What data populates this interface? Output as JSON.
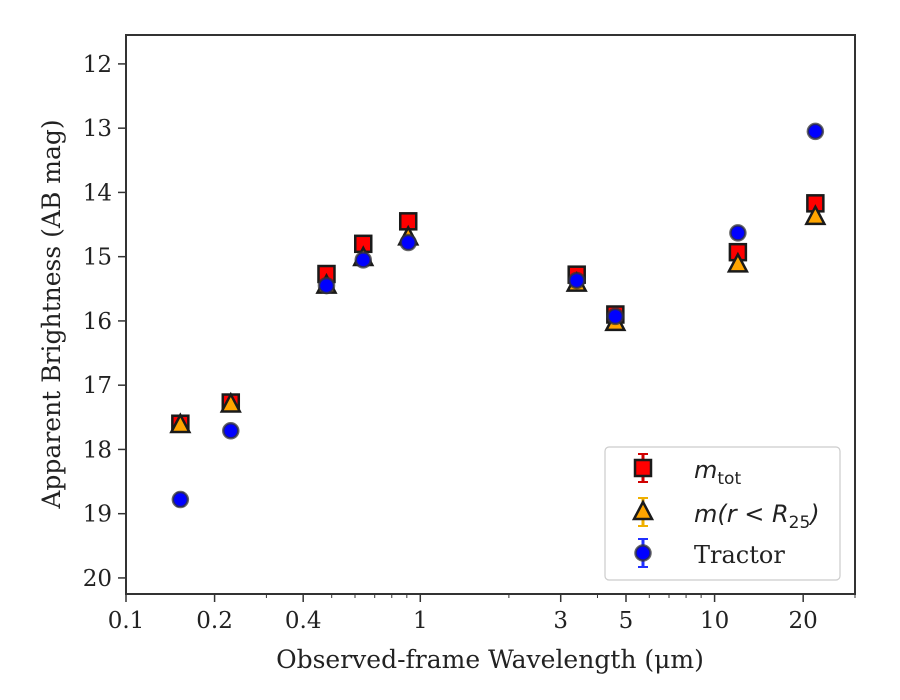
{
  "chart_data": {
    "type": "scatter",
    "xlabel": "Observed-frame Wavelength (μm)",
    "ylabel": "Apparent Brightness (AB mag)",
    "xscale": "log",
    "xlim": [
      0.1,
      30
    ],
    "ylim": [
      20.25,
      11.55
    ],
    "y_inverted": true,
    "x_ticks": [
      0.1,
      0.2,
      0.4,
      1,
      3,
      5,
      10,
      20
    ],
    "x_tick_labels": [
      "0.1",
      "0.2",
      "0.4",
      "1",
      "3",
      "5",
      "10",
      "20"
    ],
    "y_ticks": [
      12,
      13,
      14,
      15,
      16,
      17,
      18,
      19,
      20
    ],
    "y_tick_labels": [
      "12",
      "13",
      "14",
      "15",
      "16",
      "17",
      "18",
      "19",
      "20"
    ],
    "legend_placement": "lower-right",
    "grid": false,
    "series": [
      {
        "name": "m_tot",
        "marker": "square",
        "color": "#ff0000",
        "errorbar_color": "#d00000",
        "x": [
          0.153,
          0.227,
          0.48,
          0.64,
          0.91,
          3.4,
          4.6,
          12.0,
          22.0
        ],
        "y": [
          17.6,
          17.27,
          15.27,
          14.8,
          14.45,
          15.28,
          15.9,
          14.93,
          14.17
        ],
        "yerr": [
          0.07,
          0.08,
          0.08,
          0.08,
          0.08,
          0.06,
          0.06,
          0.06,
          0.06
        ]
      },
      {
        "name": "m(r < R_25)",
        "marker": "triangle",
        "color": "#ffa500",
        "errorbar_color": "#f0b000",
        "x": [
          0.153,
          0.227,
          0.48,
          0.64,
          0.91,
          3.4,
          4.6,
          12.0,
          22.0
        ],
        "y": [
          17.62,
          17.3,
          15.45,
          15.02,
          14.7,
          15.42,
          16.03,
          15.12,
          14.38
        ],
        "yerr": [
          0.06,
          0.06,
          0.06,
          0.06,
          0.06,
          0.05,
          0.05,
          0.05,
          0.05
        ]
      },
      {
        "name": "Tractor",
        "marker": "circle",
        "color": "#0000ff",
        "errorbar_color": "#2030ff",
        "x": [
          0.153,
          0.227,
          0.48,
          0.64,
          0.91,
          3.4,
          4.6,
          12.0,
          22.0
        ],
        "y": [
          18.78,
          17.71,
          15.45,
          15.05,
          14.78,
          15.37,
          15.93,
          14.63,
          13.05
        ],
        "yerr": [
          0.1,
          0.08,
          0.06,
          0.06,
          0.06,
          0.05,
          0.05,
          0.06,
          0.07
        ]
      }
    ],
    "legend": {
      "m_tot_main": "m",
      "m_tot_sub": "tot",
      "m_r_prefix": "m(r < R",
      "m_r_sub": "25",
      "m_r_suffix": ")",
      "tractor": "Tractor"
    }
  }
}
